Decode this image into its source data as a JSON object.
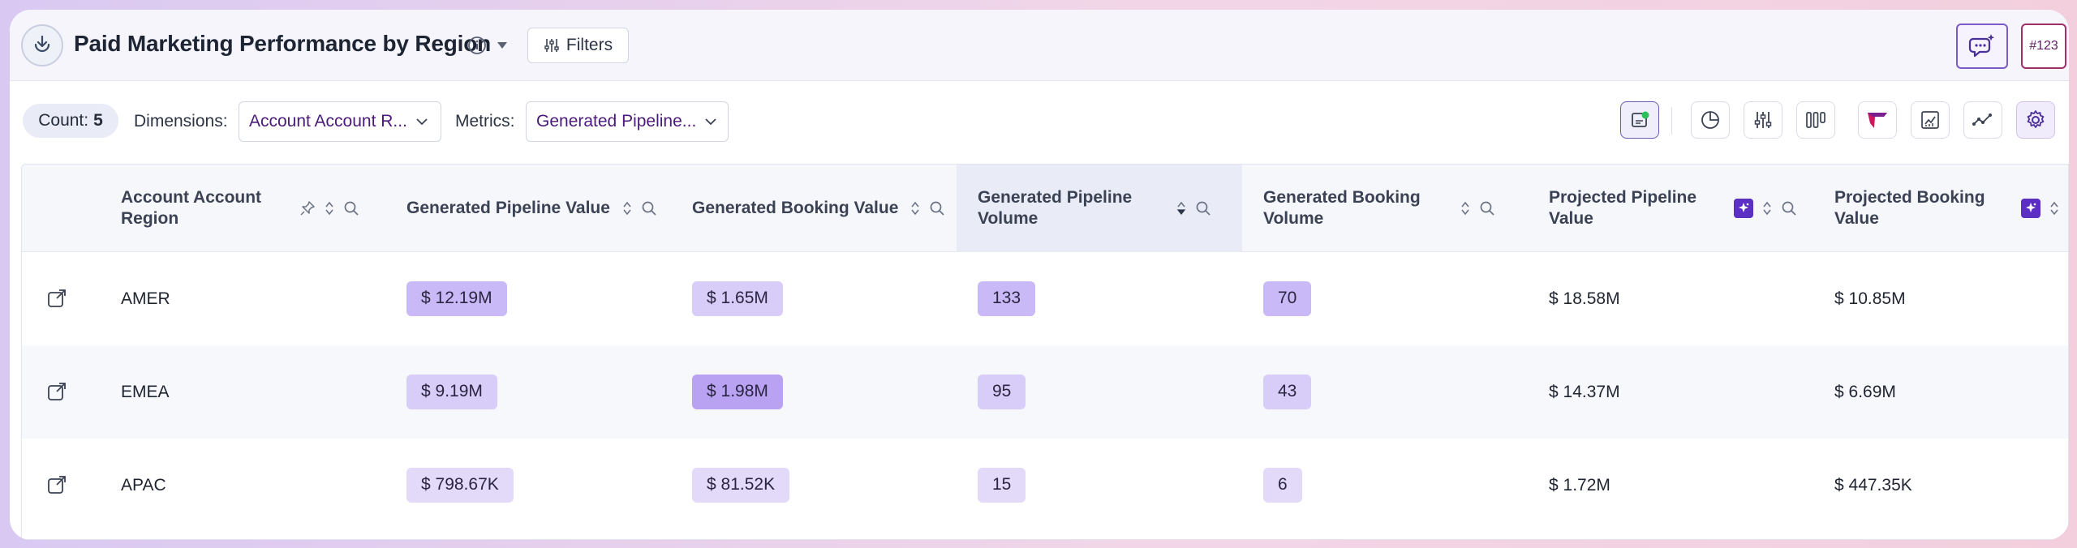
{
  "header": {
    "title": "Paid Marketing Performance by Region",
    "filters_label": "Filters",
    "badge_label": "#123"
  },
  "toolbar": {
    "count_label": "Count:",
    "count_value": "5",
    "dimensions_label": "Dimensions:",
    "dimensions_value": "Account Account R...",
    "metrics_label": "Metrics:",
    "metrics_value": "Generated Pipeline...",
    "tools": [
      "insight-icon",
      "pie-chart-icon",
      "sliders-icon",
      "columns-icon",
      "funnel-icon",
      "report-chart-icon",
      "trend-line-icon",
      "settings-icon"
    ]
  },
  "table": {
    "columns": [
      "Account Account Region",
      "Generated Pipeline Value",
      "Generated Booking Value",
      "Generated Pipeline Volume",
      "Generated Booking Volume",
      "Projected Pipeline Value",
      "Projected Booking Value"
    ],
    "rows": [
      {
        "region": "AMER",
        "gen_pipeline_value": "$ 12.19M",
        "gen_booking_value": "$ 1.65M",
        "gen_pipeline_volume": "133",
        "gen_booking_volume": "70",
        "proj_pipeline_value": "$ 18.58M",
        "proj_booking_value": "$ 10.85M"
      },
      {
        "region": "EMEA",
        "gen_pipeline_value": "$ 9.19M",
        "gen_booking_value": "$ 1.98M",
        "gen_pipeline_volume": "95",
        "gen_booking_volume": "43",
        "proj_pipeline_value": "$ 14.37M",
        "proj_booking_value": "$ 6.69M"
      },
      {
        "region": "APAC",
        "gen_pipeline_value": "$ 798.67K",
        "gen_booking_value": "$ 81.52K",
        "gen_pipeline_volume": "15",
        "gen_booking_volume": "6",
        "proj_pipeline_value": "$ 1.72M",
        "proj_booking_value": "$ 447.35K"
      }
    ]
  },
  "colors": {
    "accent": "#5a2fc2",
    "chip_strong": "#b9a2f2",
    "chip_medium": "#c9b9f6",
    "chip_light": "#d8ccf9",
    "chip_faint": "#e3daf9"
  }
}
